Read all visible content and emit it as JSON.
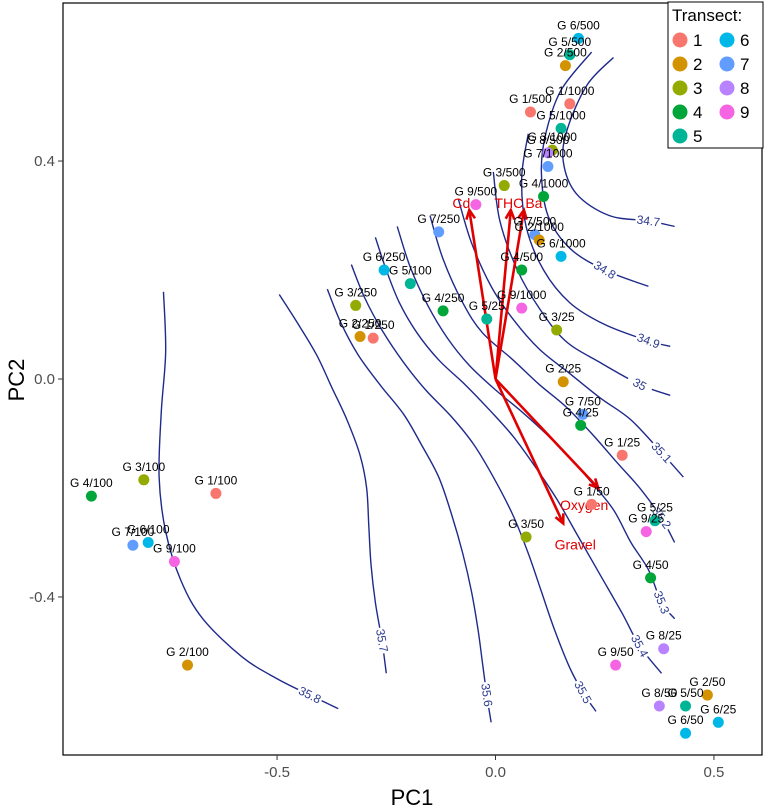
{
  "chart_data": {
    "type": "scatter",
    "title": "",
    "xlabel": "PC1",
    "ylabel": "PC2",
    "xlim": [
      -0.99,
      0.61
    ],
    "ylim": [
      -0.69,
      0.69
    ],
    "x_ticks": [
      {
        "value": -0.5,
        "label": "-0.5"
      },
      {
        "value": 0.0,
        "label": "0.0"
      },
      {
        "value": 0.5,
        "label": "0.5"
      }
    ],
    "y_ticks": [
      {
        "value": -0.4,
        "label": "-0.4"
      },
      {
        "value": 0.0,
        "label": "0.0"
      },
      {
        "value": 0.4,
        "label": "0.4"
      }
    ],
    "grid": false,
    "legend": {
      "title": "Transect:",
      "position": "top-right",
      "entries": [
        {
          "label": "1",
          "color": "#f8766d"
        },
        {
          "label": "2",
          "color": "#d39200"
        },
        {
          "label": "3",
          "color": "#93aa00"
        },
        {
          "label": "4",
          "color": "#00a63a"
        },
        {
          "label": "5",
          "color": "#00b596"
        },
        {
          "label": "6",
          "color": "#00b8e7"
        },
        {
          "label": "7",
          "color": "#619cff"
        },
        {
          "label": "8",
          "color": "#b983ff"
        },
        {
          "label": "9",
          "color": "#f564e3"
        }
      ]
    },
    "points": [
      {
        "label": "G 6/500",
        "x": 0.19,
        "y": 0.625,
        "t": 6
      },
      {
        "label": "G 5/500",
        "x": 0.17,
        "y": 0.595,
        "t": 5
      },
      {
        "label": "G 2/500",
        "x": 0.16,
        "y": 0.575,
        "t": 2
      },
      {
        "label": "G 1/500",
        "x": 0.08,
        "y": 0.49,
        "t": 1
      },
      {
        "label": "G 1/1000",
        "x": 0.17,
        "y": 0.505,
        "t": 1
      },
      {
        "label": "G 5/1000",
        "x": 0.15,
        "y": 0.46,
        "t": 5
      },
      {
        "label": "G 3/1000",
        "x": 0.13,
        "y": 0.42,
        "t": 3
      },
      {
        "label": "G 8/500",
        "x": 0.12,
        "y": 0.415,
        "t": 8
      },
      {
        "label": "G 7/1000",
        "x": 0.12,
        "y": 0.39,
        "t": 7
      },
      {
        "label": "G 3/500",
        "x": 0.02,
        "y": 0.355,
        "t": 3
      },
      {
        "label": "G 4/1000",
        "x": 0.11,
        "y": 0.335,
        "t": 4
      },
      {
        "label": "G 9/500",
        "x": -0.045,
        "y": 0.32,
        "t": 9
      },
      {
        "label": "G 7/500",
        "x": 0.09,
        "y": 0.265,
        "t": 7
      },
      {
        "label": "G 2/1000",
        "x": 0.1,
        "y": 0.255,
        "t": 2
      },
      {
        "label": "G 7/250",
        "x": -0.13,
        "y": 0.27,
        "t": 7
      },
      {
        "label": "G 6/1000",
        "x": 0.15,
        "y": 0.225,
        "t": 6
      },
      {
        "label": "G 4/500",
        "x": 0.06,
        "y": 0.2,
        "t": 4
      },
      {
        "label": "G 6/250",
        "x": -0.255,
        "y": 0.2,
        "t": 6
      },
      {
        "label": "G 5/100",
        "x": -0.195,
        "y": 0.175,
        "t": 5
      },
      {
        "label": "G 9/1000",
        "x": 0.06,
        "y": 0.13,
        "t": 9
      },
      {
        "label": "G 4/250",
        "x": -0.12,
        "y": 0.125,
        "t": 4
      },
      {
        "label": "G 3/250",
        "x": -0.32,
        "y": 0.135,
        "t": 3
      },
      {
        "label": "G 5/25",
        "x": -0.02,
        "y": 0.11,
        "t": 5
      },
      {
        "label": "G 3/25",
        "x": 0.14,
        "y": 0.09,
        "t": 3
      },
      {
        "label": "G 2/250",
        "x": -0.31,
        "y": 0.078,
        "t": 2
      },
      {
        "label": "G 1/250",
        "x": -0.28,
        "y": 0.075,
        "t": 1
      },
      {
        "label": "G 2/25",
        "x": 0.155,
        "y": -0.005,
        "t": 2
      },
      {
        "label": "G 7/50",
        "x": 0.2,
        "y": -0.065,
        "t": 7
      },
      {
        "label": "G 4/25",
        "x": 0.195,
        "y": -0.085,
        "t": 4
      },
      {
        "label": "G 1/25",
        "x": 0.29,
        "y": -0.14,
        "t": 1
      },
      {
        "label": "G 3/100",
        "x": -0.805,
        "y": -0.185,
        "t": 3
      },
      {
        "label": "G 1/100",
        "x": -0.64,
        "y": -0.21,
        "t": 1
      },
      {
        "label": "G 4/100",
        "x": -0.925,
        "y": -0.215,
        "t": 4
      },
      {
        "label": "G 1/50",
        "x": 0.22,
        "y": -0.23,
        "t": 1
      },
      {
        "label": "G 5/25",
        "x": 0.365,
        "y": -0.26,
        "t": 5
      },
      {
        "label": "G 3/50",
        "x": 0.07,
        "y": -0.29,
        "t": 3
      },
      {
        "label": "G 9/25",
        "x": 0.345,
        "y": -0.28,
        "t": 9
      },
      {
        "label": "G 6/100",
        "x": -0.795,
        "y": -0.3,
        "t": 6
      },
      {
        "label": "G 7/100",
        "x": -0.83,
        "y": -0.305,
        "t": 7
      },
      {
        "label": "G 9/100",
        "x": -0.735,
        "y": -0.335,
        "t": 9
      },
      {
        "label": "G 4/50",
        "x": 0.355,
        "y": -0.365,
        "t": 4
      },
      {
        "label": "G 8/25",
        "x": 0.385,
        "y": -0.495,
        "t": 8
      },
      {
        "label": "G 9/50",
        "x": 0.275,
        "y": -0.525,
        "t": 9
      },
      {
        "label": "G 2/100",
        "x": -0.705,
        "y": -0.525,
        "t": 2
      },
      {
        "label": "G 2/50",
        "x": 0.485,
        "y": -0.58,
        "t": 2
      },
      {
        "label": "G 5/50",
        "x": 0.435,
        "y": -0.6,
        "t": 5
      },
      {
        "label": "G 8/50",
        "x": 0.375,
        "y": -0.6,
        "t": 8
      },
      {
        "label": "G 6/25",
        "x": 0.51,
        "y": -0.63,
        "t": 6
      },
      {
        "label": "G 6/50",
        "x": 0.435,
        "y": -0.65,
        "t": 6
      }
    ],
    "vectors": [
      {
        "label": "Cd",
        "x": -0.06,
        "y": 0.31
      },
      {
        "label": "THC",
        "x": 0.035,
        "y": 0.31
      },
      {
        "label": "Ba",
        "x": 0.065,
        "y": 0.31
      },
      {
        "label": "Oxygen",
        "x": 0.235,
        "y": -0.2
      },
      {
        "label": "Gravel",
        "x": 0.155,
        "y": -0.265
      }
    ],
    "contours": [
      {
        "level": "34.7",
        "points": [
          [
            0.27,
            0.59
          ],
          [
            0.21,
            0.54
          ],
          [
            0.165,
            0.46
          ],
          [
            0.155,
            0.4
          ],
          [
            0.185,
            0.34
          ],
          [
            0.26,
            0.3
          ],
          [
            0.35,
            0.29
          ],
          [
            0.41,
            0.28
          ]
        ]
      },
      {
        "level": "34.8",
        "points": [
          [
            0.22,
            0.6
          ],
          [
            0.15,
            0.53
          ],
          [
            0.115,
            0.45
          ],
          [
            0.105,
            0.38
          ],
          [
            0.12,
            0.3
          ],
          [
            0.17,
            0.24
          ],
          [
            0.25,
            0.2
          ],
          [
            0.35,
            0.17
          ]
        ]
      },
      {
        "level": "34.9",
        "points": [
          [
            0.075,
            0.45
          ],
          [
            0.06,
            0.37
          ],
          [
            0.07,
            0.28
          ],
          [
            0.11,
            0.2
          ],
          [
            0.17,
            0.14
          ],
          [
            0.25,
            0.1
          ],
          [
            0.35,
            0.07
          ],
          [
            0.4,
            0.06
          ]
        ]
      },
      {
        "level": "35",
        "points": [
          [
            -0.005,
            0.38
          ],
          [
            0.01,
            0.29
          ],
          [
            0.05,
            0.2
          ],
          [
            0.1,
            0.13
          ],
          [
            0.16,
            0.07
          ],
          [
            0.24,
            0.03
          ],
          [
            0.33,
            -0.01
          ],
          [
            0.4,
            -0.03
          ]
        ]
      },
      {
        "level": "35.1",
        "points": [
          [
            -0.085,
            0.33
          ],
          [
            -0.055,
            0.25
          ],
          [
            -0.01,
            0.17
          ],
          [
            0.04,
            0.11
          ],
          [
            0.1,
            0.055
          ],
          [
            0.17,
            0.01
          ],
          [
            0.24,
            -0.035
          ],
          [
            0.31,
            -0.075
          ],
          [
            0.38,
            -0.135
          ],
          [
            0.43,
            -0.18
          ]
        ]
      },
      {
        "level": "35.2",
        "points": [
          [
            -0.15,
            0.3
          ],
          [
            -0.12,
            0.22
          ],
          [
            -0.075,
            0.14
          ],
          [
            -0.03,
            0.085
          ],
          [
            0.04,
            0.035
          ],
          [
            0.1,
            -0.01
          ],
          [
            0.16,
            -0.05
          ],
          [
            0.22,
            -0.1
          ],
          [
            0.28,
            -0.155
          ],
          [
            0.33,
            -0.2
          ],
          [
            0.38,
            -0.255
          ],
          [
            0.41,
            -0.3
          ]
        ]
      },
      {
        "level": "35.3",
        "points": [
          [
            -0.225,
            0.28
          ],
          [
            -0.195,
            0.205
          ],
          [
            -0.155,
            0.135
          ],
          [
            -0.11,
            0.075
          ],
          [
            -0.06,
            0.025
          ],
          [
            0.0,
            -0.02
          ],
          [
            0.06,
            -0.06
          ],
          [
            0.115,
            -0.1
          ],
          [
            0.17,
            -0.145
          ],
          [
            0.22,
            -0.19
          ],
          [
            0.27,
            -0.24
          ],
          [
            0.31,
            -0.3
          ],
          [
            0.35,
            -0.35
          ],
          [
            0.38,
            -0.41
          ],
          [
            0.41,
            -0.44
          ]
        ]
      },
      {
        "level": "35.4",
        "points": [
          [
            -0.275,
            0.26
          ],
          [
            -0.25,
            0.2
          ],
          [
            -0.22,
            0.14
          ],
          [
            -0.18,
            0.085
          ],
          [
            -0.13,
            0.035
          ],
          [
            -0.07,
            -0.01
          ],
          [
            -0.01,
            -0.06
          ],
          [
            0.04,
            -0.105
          ],
          [
            0.09,
            -0.16
          ],
          [
            0.14,
            -0.22
          ],
          [
            0.19,
            -0.29
          ],
          [
            0.24,
            -0.36
          ],
          [
            0.29,
            -0.43
          ],
          [
            0.33,
            -0.49
          ],
          [
            0.38,
            -0.54
          ]
        ]
      },
      {
        "level": "35.5",
        "points": [
          [
            -0.33,
            0.21
          ],
          [
            -0.3,
            0.15
          ],
          [
            -0.26,
            0.09
          ],
          [
            -0.21,
            0.03
          ],
          [
            -0.16,
            -0.02
          ],
          [
            -0.1,
            -0.07
          ],
          [
            -0.05,
            -0.12
          ],
          [
            -0.005,
            -0.18
          ],
          [
            0.04,
            -0.25
          ],
          [
            0.075,
            -0.32
          ],
          [
            0.105,
            -0.39
          ],
          [
            0.135,
            -0.46
          ],
          [
            0.17,
            -0.53
          ],
          [
            0.2,
            -0.575
          ],
          [
            0.23,
            -0.61
          ]
        ]
      },
      {
        "level": "35.6",
        "points": [
          [
            -0.385,
            0.165
          ],
          [
            -0.355,
            0.105
          ],
          [
            -0.315,
            0.045
          ],
          [
            -0.265,
            -0.01
          ],
          [
            -0.21,
            -0.065
          ],
          [
            -0.17,
            -0.12
          ],
          [
            -0.13,
            -0.18
          ],
          [
            -0.1,
            -0.25
          ],
          [
            -0.075,
            -0.32
          ],
          [
            -0.055,
            -0.39
          ],
          [
            -0.04,
            -0.46
          ],
          [
            -0.03,
            -0.52
          ],
          [
            -0.02,
            -0.58
          ],
          [
            -0.01,
            -0.63
          ]
        ]
      },
      {
        "level": "35.7",
        "points": [
          [
            -0.495,
            0.155
          ],
          [
            -0.455,
            0.105
          ],
          [
            -0.41,
            0.045
          ],
          [
            -0.375,
            -0.015
          ],
          [
            -0.34,
            -0.075
          ],
          [
            -0.31,
            -0.14
          ],
          [
            -0.295,
            -0.2
          ],
          [
            -0.29,
            -0.27
          ],
          [
            -0.285,
            -0.34
          ],
          [
            -0.275,
            -0.41
          ],
          [
            -0.26,
            -0.48
          ],
          [
            -0.25,
            -0.54
          ]
        ]
      },
      {
        "level": "35.8",
        "points": [
          [
            -0.76,
            0.16
          ],
          [
            -0.755,
            0.05
          ],
          [
            -0.765,
            -0.06
          ],
          [
            -0.77,
            -0.18
          ],
          [
            -0.755,
            -0.28
          ],
          [
            -0.72,
            -0.37
          ],
          [
            -0.67,
            -0.44
          ],
          [
            -0.58,
            -0.51
          ],
          [
            -0.5,
            -0.55
          ],
          [
            -0.425,
            -0.58
          ],
          [
            -0.36,
            -0.605
          ]
        ]
      }
    ],
    "contour_color": "#1f2a8a",
    "vector_color": "#e00000"
  }
}
